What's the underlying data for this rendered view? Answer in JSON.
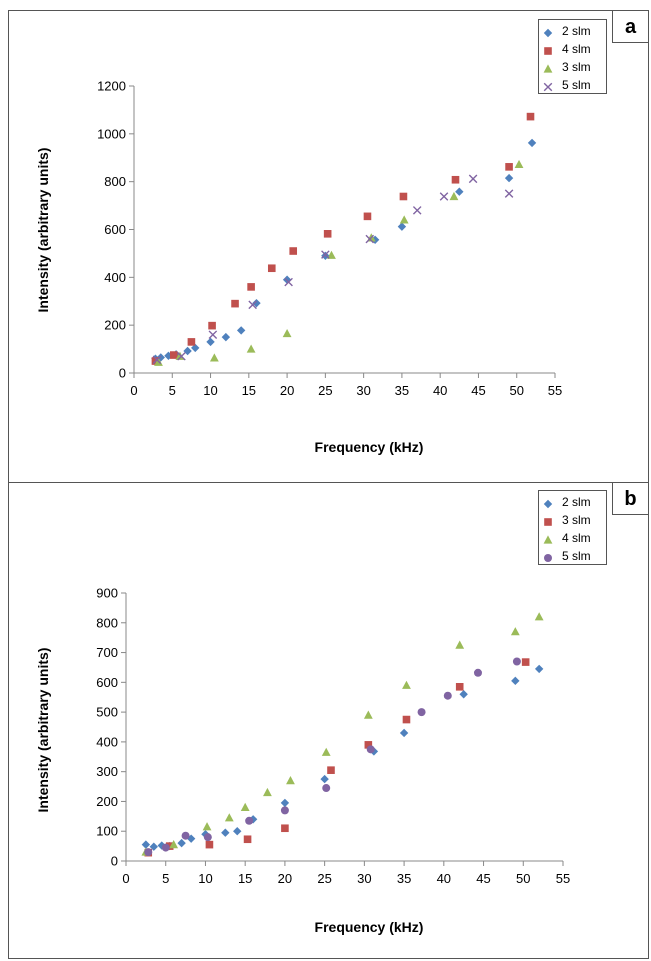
{
  "chart_data": [
    {
      "type": "scatter",
      "panel_label": "a",
      "xlabel": "Frequency (kHz)",
      "ylabel": "Intensity (arbitrary units)",
      "xlim": [
        0,
        55
      ],
      "ylim": [
        0,
        1200
      ],
      "xticks": [
        0,
        5,
        10,
        15,
        20,
        25,
        30,
        35,
        40,
        45,
        50,
        55
      ],
      "yticks": [
        0,
        200,
        400,
        600,
        800,
        1000,
        1200
      ],
      "grid": false,
      "legend_position": "top-right",
      "series": [
        {
          "name": "2 slm",
          "marker": "diamond",
          "color": "#4f81bd",
          "points": [
            [
              2.8,
              60
            ],
            [
              3.5,
              65
            ],
            [
              4.5,
              72
            ],
            [
              5.5,
              78
            ],
            [
              7,
              92
            ],
            [
              8,
              105
            ],
            [
              10,
              130
            ],
            [
              12,
              150
            ],
            [
              14,
              178
            ],
            [
              16,
              292
            ],
            [
              20,
              390
            ],
            [
              25,
              490
            ],
            [
              31.5,
              557
            ],
            [
              35,
              612
            ],
            [
              42.5,
              758
            ],
            [
              49,
              815
            ],
            [
              52,
              962
            ]
          ]
        },
        {
          "name": "4 slm",
          "marker": "square",
          "color": "#c0504d",
          "points": [
            [
              2.8,
              50
            ],
            [
              5.2,
              75
            ],
            [
              7.5,
              130
            ],
            [
              10.2,
              198
            ],
            [
              13.2,
              290
            ],
            [
              15.3,
              360
            ],
            [
              18,
              438
            ],
            [
              20.8,
              510
            ],
            [
              25.3,
              582
            ],
            [
              30.5,
              655
            ],
            [
              35.2,
              738
            ],
            [
              42,
              808
            ],
            [
              49,
              862
            ],
            [
              51.8,
              1072
            ]
          ]
        },
        {
          "name": "3 slm",
          "marker": "triangle",
          "color": "#9bbb59",
          "points": [
            [
              3.2,
              45
            ],
            [
              6,
              70
            ],
            [
              10.5,
              63
            ],
            [
              15.3,
              100
            ],
            [
              20,
              165
            ],
            [
              25.8,
              492
            ],
            [
              31,
              565
            ],
            [
              35.3,
              640
            ],
            [
              41.8,
              738
            ],
            [
              50.3,
              872
            ]
          ]
        },
        {
          "name": "5 slm",
          "marker": "x",
          "color": "#8064a2",
          "points": [
            [
              3,
              55
            ],
            [
              6.2,
              70
            ],
            [
              10.3,
              160
            ],
            [
              15.5,
              285
            ],
            [
              20.2,
              380
            ],
            [
              25,
              495
            ],
            [
              30.8,
              560
            ],
            [
              37,
              680
            ],
            [
              40.5,
              738
            ],
            [
              44.3,
              812
            ],
            [
              49,
              750
            ]
          ]
        }
      ]
    },
    {
      "type": "scatter",
      "panel_label": "b",
      "xlabel": "Frequency (kHz)",
      "ylabel": "Intensity (arbitrary units)",
      "xlim": [
        0,
        55
      ],
      "ylim": [
        0,
        900
      ],
      "xticks": [
        0,
        5,
        10,
        15,
        20,
        25,
        30,
        35,
        40,
        45,
        50,
        55
      ],
      "yticks": [
        0,
        100,
        200,
        300,
        400,
        500,
        600,
        700,
        800,
        900
      ],
      "grid": false,
      "legend_position": "top-right",
      "series": [
        {
          "name": "2 slm",
          "marker": "diamond",
          "color": "#4f81bd",
          "points": [
            [
              2.5,
              55
            ],
            [
              3.5,
              48
            ],
            [
              4.5,
              52
            ],
            [
              5.5,
              50
            ],
            [
              7,
              60
            ],
            [
              8.2,
              75
            ],
            [
              10,
              90
            ],
            [
              12.5,
              95
            ],
            [
              14,
              100
            ],
            [
              16,
              140
            ],
            [
              20,
              195
            ],
            [
              25,
              275
            ],
            [
              31.2,
              368
            ],
            [
              35,
              430
            ],
            [
              42.5,
              560
            ],
            [
              49,
              605
            ],
            [
              52,
              645
            ]
          ]
        },
        {
          "name": "3 slm",
          "marker": "square",
          "color": "#c0504d",
          "points": [
            [
              2.8,
              28
            ],
            [
              5.5,
              50
            ],
            [
              10.5,
              55
            ],
            [
              15.3,
              73
            ],
            [
              20,
              110
            ],
            [
              25.8,
              305
            ],
            [
              30.5,
              390
            ],
            [
              35.3,
              475
            ],
            [
              42,
              585
            ],
            [
              50.3,
              668
            ]
          ]
        },
        {
          "name": "4 slm",
          "marker": "triangle",
          "color": "#9bbb59",
          "points": [
            [
              2.5,
              30
            ],
            [
              6,
              55
            ],
            [
              10.2,
              115
            ],
            [
              13,
              145
            ],
            [
              15,
              180
            ],
            [
              17.8,
              230
            ],
            [
              20.7,
              270
            ],
            [
              25.2,
              365
            ],
            [
              30.5,
              490
            ],
            [
              35.3,
              590
            ],
            [
              42,
              725
            ],
            [
              49,
              770
            ],
            [
              52,
              820
            ]
          ]
        },
        {
          "name": "5 slm",
          "marker": "circle",
          "color": "#8064a2",
          "points": [
            [
              2.8,
              30
            ],
            [
              5,
              45
            ],
            [
              7.5,
              85
            ],
            [
              10.3,
              80
            ],
            [
              15.5,
              135
            ],
            [
              20,
              170
            ],
            [
              25.2,
              245
            ],
            [
              30.8,
              375
            ],
            [
              37.2,
              500
            ],
            [
              40.5,
              555
            ],
            [
              44.3,
              632
            ],
            [
              49.2,
              670
            ]
          ]
        }
      ]
    }
  ]
}
